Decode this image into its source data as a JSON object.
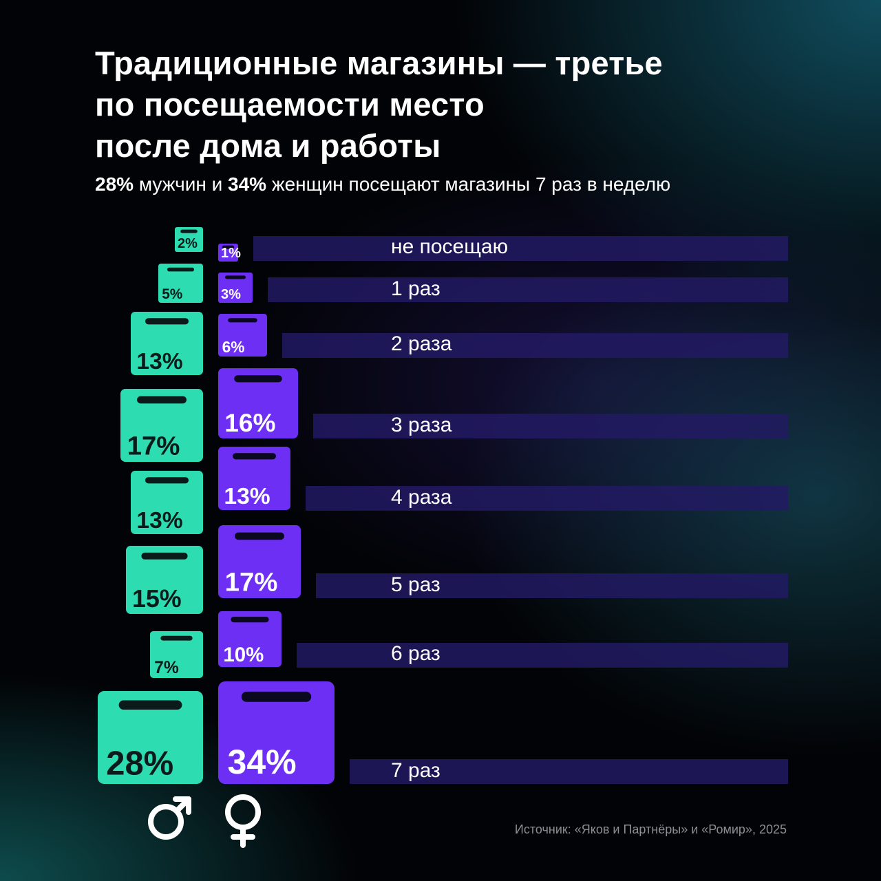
{
  "title_lines": [
    "Традиционные магазины — третье",
    "по посещаемости место",
    "после дома и работы"
  ],
  "subtitle": {
    "men_pct": "28%",
    "part1": " мужчин и ",
    "women_pct": "34%",
    "part2": " женщин посещают магазины 7 раз в неделю"
  },
  "source": "Источник: «Яков и Партнёры» и «Ромир», 2025",
  "colors": {
    "men": "#2ddcb0",
    "women": "#6e2ff5",
    "row_bar": "#221a63"
  },
  "chart_data": {
    "type": "bar",
    "categories": [
      "не посещаю",
      "1 раз",
      "2 раза",
      "3 раза",
      "4 раза",
      "5 раз",
      "6 раз",
      "7 раз"
    ],
    "series": [
      {
        "name": "♂",
        "values": [
          2,
          5,
          13,
          17,
          13,
          15,
          7,
          28
        ]
      },
      {
        "name": "♀",
        "values": [
          1,
          3,
          6,
          16,
          13,
          17,
          10,
          34
        ]
      }
    ],
    "value_labels": {
      "men": [
        "2%",
        "5%",
        "13%",
        "17%",
        "13%",
        "15%",
        "7%",
        "28%"
      ],
      "women": [
        "1%",
        "3%",
        "6%",
        "16%",
        "13%",
        "17%",
        "10%",
        "34%"
      ]
    },
    "legend_symbols": {
      "men": "♂",
      "women": "♀"
    }
  }
}
